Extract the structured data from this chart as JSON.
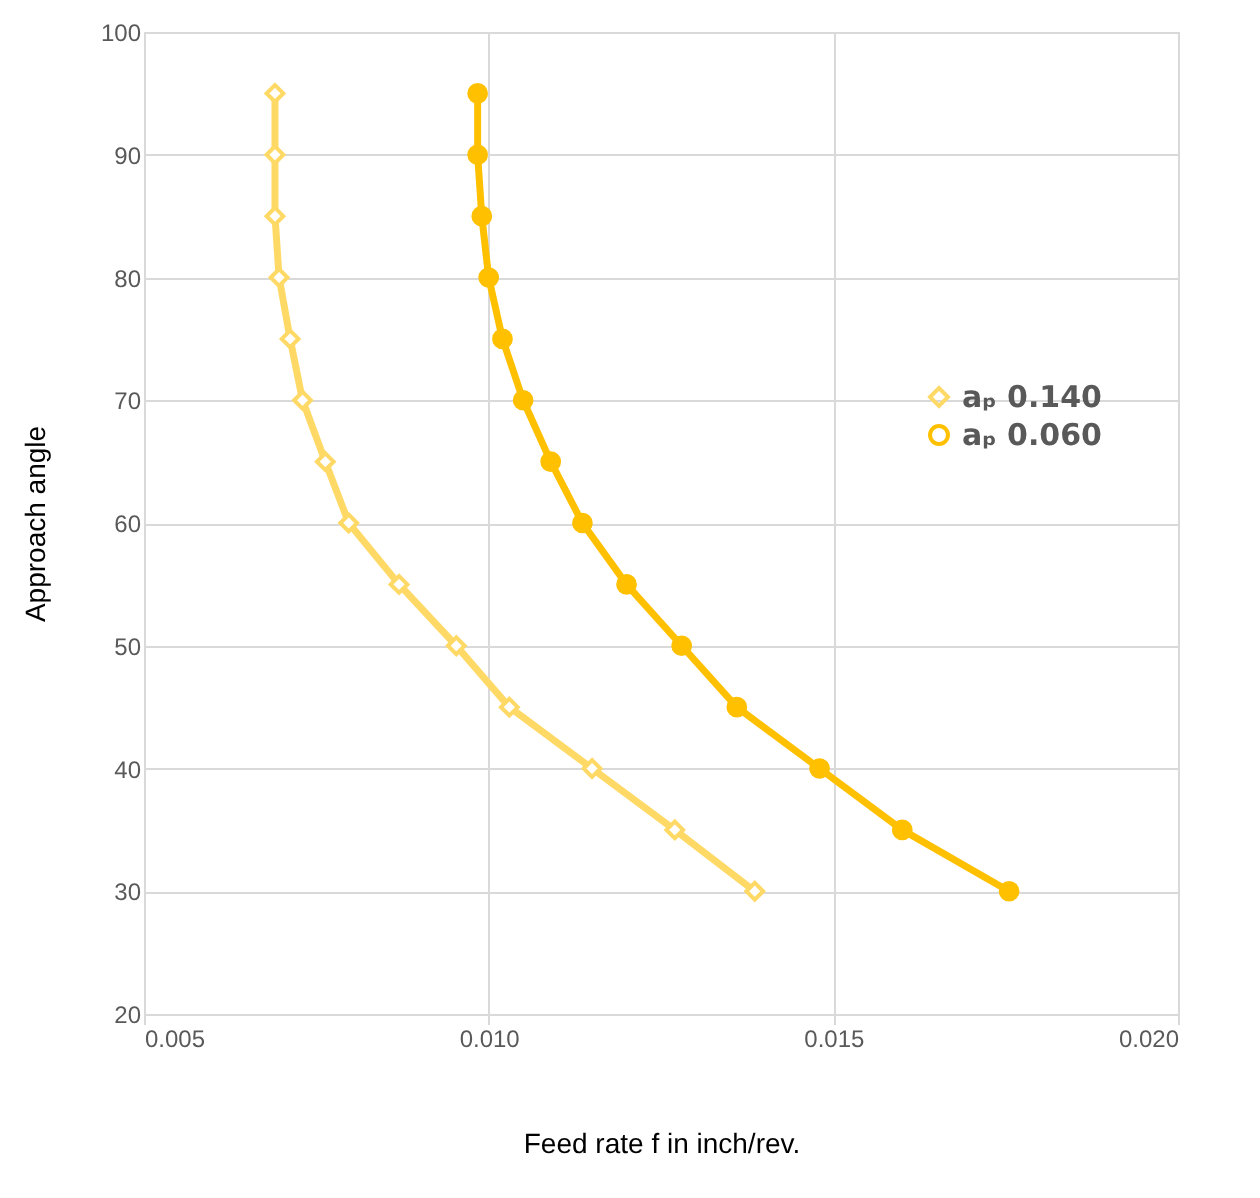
{
  "chart_data": {
    "type": "line",
    "xlabel": "Feed rate f in inch/rev.",
    "ylabel": "Approach angle",
    "xlim": [
      0.005,
      0.02
    ],
    "xticks": [
      {
        "value": 0.005,
        "label": "0.005"
      },
      {
        "value": 0.01,
        "label": "0.010"
      },
      {
        "value": 0.015,
        "label": "0.015"
      },
      {
        "value": 0.02,
        "label": "0.020"
      }
    ],
    "ylim": [
      20,
      100
    ],
    "yticks": [
      20,
      30,
      40,
      50,
      60,
      70,
      80,
      90,
      100
    ],
    "grid": true,
    "legend": "right",
    "series": [
      {
        "name": "aₚ 0.140",
        "color": "#ffd966",
        "marker": "diamond",
        "x": [
          0.0069,
          0.0069,
          0.0069,
          0.00696,
          0.00712,
          0.0073,
          0.00763,
          0.00797,
          0.0087,
          0.00953,
          0.0103,
          0.0115,
          0.0127,
          0.01386
        ],
        "values": [
          95,
          90,
          85,
          80,
          75,
          70,
          65,
          60,
          55,
          50,
          45,
          40,
          35,
          30
        ]
      },
      {
        "name": "aₚ 0.060",
        "color": "#ffc000",
        "marker": "circle",
        "x": [
          0.00984,
          0.00984,
          0.0099,
          0.01,
          0.0102,
          0.0105,
          0.0109,
          0.01136,
          0.012,
          0.0128,
          0.0136,
          0.0148,
          0.016,
          0.01755
        ],
        "values": [
          95,
          90,
          85,
          80,
          75,
          70,
          65,
          60,
          55,
          50,
          45,
          40,
          35,
          30
        ]
      }
    ]
  }
}
